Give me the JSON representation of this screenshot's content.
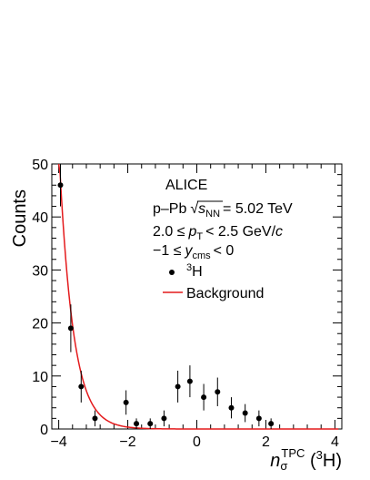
{
  "chart_data": {
    "type": "scatter",
    "xlabel": {
      "main": "n",
      "sub": "σ",
      "sup": "TPC",
      "paren_open": " (",
      "nucleus_sup": "3",
      "nucleus": "H",
      "paren_close": ")"
    },
    "ylabel": "Counts",
    "xlim": [
      -4.2,
      4.2
    ],
    "ylim": [
      0,
      50
    ],
    "x_ticks": [
      -4,
      -2,
      0,
      2,
      4
    ],
    "x_tick_labels": [
      "−4",
      "−2",
      "0",
      "2",
      "4"
    ],
    "y_ticks": [
      0,
      10,
      20,
      30,
      40,
      50
    ],
    "y_tick_labels": [
      "0",
      "10",
      "20",
      "30",
      "40",
      "50"
    ],
    "annotations": {
      "experiment": "ALICE",
      "system_prefix": "p–Pb",
      "energy_label": "s",
      "energy_sub": "NN",
      "energy_value": "= 5.02 TeV",
      "pt_prefix": "2.0 ≤",
      "pt_label": "p",
      "pt_sub": "T",
      "pt_value": "< 2.5 GeV/",
      "pt_unit": "c",
      "y_prefix": "−1 ≤",
      "y_label": "y",
      "y_sub": "cms",
      "y_value": "< 0"
    },
    "legend": {
      "placement": "top-right",
      "entries": [
        {
          "marker": "point",
          "sup": "3",
          "label": "H"
        },
        {
          "marker": "line",
          "label": "Background",
          "color": "#e41a1c"
        }
      ]
    },
    "series": [
      {
        "points": [
          {
            "x": -3.95,
            "y": 46,
            "err": 4
          },
          {
            "x": -3.65,
            "y": 19,
            "err": 4.5
          },
          {
            "x": -3.35,
            "y": 8,
            "err": 3
          },
          {
            "x": -2.95,
            "y": 2,
            "err": 1.5
          },
          {
            "x": -2.05,
            "y": 5,
            "err": 2.3
          },
          {
            "x": -1.75,
            "y": 1,
            "err": 1
          },
          {
            "x": -1.35,
            "y": 1,
            "err": 1
          },
          {
            "x": -0.95,
            "y": 2,
            "err": 1.5
          },
          {
            "x": -0.55,
            "y": 8,
            "err": 3
          },
          {
            "x": -0.2,
            "y": 9,
            "err": 3
          },
          {
            "x": 0.2,
            "y": 6,
            "err": 2.5
          },
          {
            "x": 0.6,
            "y": 7,
            "err": 2.7
          },
          {
            "x": 1.0,
            "y": 4,
            "err": 2
          },
          {
            "x": 1.4,
            "y": 3,
            "err": 1.7
          },
          {
            "x": 1.8,
            "y": 2,
            "err": 1.5
          },
          {
            "x": 2.15,
            "y": 1,
            "err": 1
          }
        ],
        "color": "#000000"
      },
      {
        "curve": {
          "form": "exponential",
          "A": 47,
          "x0": -3.95,
          "decay": 0.4,
          "x_from": -4.0,
          "x_to": 4.1
        },
        "color": "#e41a1c"
      }
    ],
    "grid": false
  }
}
